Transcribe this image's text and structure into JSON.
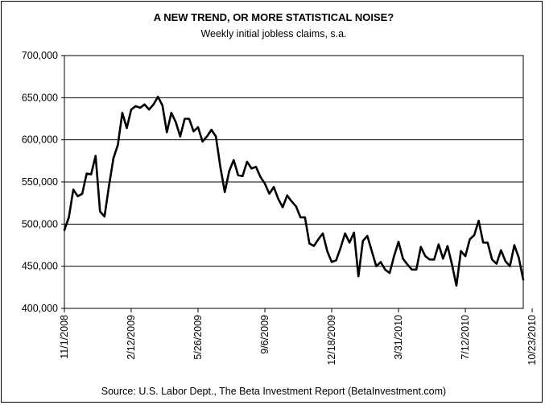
{
  "chart_data": {
    "type": "line",
    "title": "A NEW TREND, OR MORE STATISTICAL NOISE?",
    "subtitle": "Weekly initial jobless claims, s.a.",
    "source": "Source: U.S. Labor Dept., The Beta Investment Report (BetaInvestment.com)",
    "xlabel": "",
    "ylabel": "",
    "ylim": [
      400000,
      700000
    ],
    "grid": true,
    "legend": "none",
    "line_color": "#000000",
    "y_ticks": [
      {
        "value": 700000,
        "label": "700,000"
      },
      {
        "value": 650000,
        "label": "650,000"
      },
      {
        "value": 600000,
        "label": "600,000"
      },
      {
        "value": 550000,
        "label": "550,000"
      },
      {
        "value": 500000,
        "label": "500,000"
      },
      {
        "value": 450000,
        "label": "450,000"
      },
      {
        "value": 400000,
        "label": "400,000"
      }
    ],
    "x_ticks": [
      {
        "index": 0,
        "label": "11/1/2008"
      },
      {
        "index": 15,
        "label": "2/12/2009"
      },
      {
        "index": 30,
        "label": "5/26/2009"
      },
      {
        "index": 45,
        "label": "9/6/2009"
      },
      {
        "index": 60,
        "label": "12/18/2009"
      },
      {
        "index": 75,
        "label": "3/31/2010"
      },
      {
        "index": 90,
        "label": "7/12/2010"
      },
      {
        "index": 105,
        "label": "10/23/2010"
      }
    ],
    "series": [
      {
        "values": [
          493000,
          508000,
          541000,
          533000,
          536000,
          560000,
          559000,
          581000,
          515000,
          509000,
          545000,
          578000,
          594000,
          632000,
          614000,
          636000,
          640000,
          638000,
          642000,
          636000,
          642000,
          651000,
          641000,
          609000,
          632000,
          621000,
          604000,
          625000,
          625000,
          610000,
          615000,
          598000,
          604000,
          612000,
          604000,
          568000,
          538000,
          563000,
          576000,
          558000,
          557000,
          574000,
          566000,
          568000,
          556000,
          548000,
          536000,
          544000,
          530000,
          520000,
          534000,
          527000,
          521000,
          508000,
          508000,
          477000,
          474000,
          482000,
          489000,
          468000,
          455000,
          457000,
          472000,
          489000,
          478000,
          490000,
          438000,
          480000,
          486000,
          468000,
          450000,
          455000,
          446000,
          442000,
          462000,
          479000,
          459000,
          452000,
          446000,
          446000,
          473000,
          462000,
          458000,
          458000,
          476000,
          459000,
          474000,
          452000,
          427000,
          468000,
          462000,
          482000,
          487000,
          504000,
          478000,
          478000,
          458000,
          453000,
          469000,
          456000,
          450000,
          475000,
          460000,
          434000
        ]
      }
    ]
  }
}
